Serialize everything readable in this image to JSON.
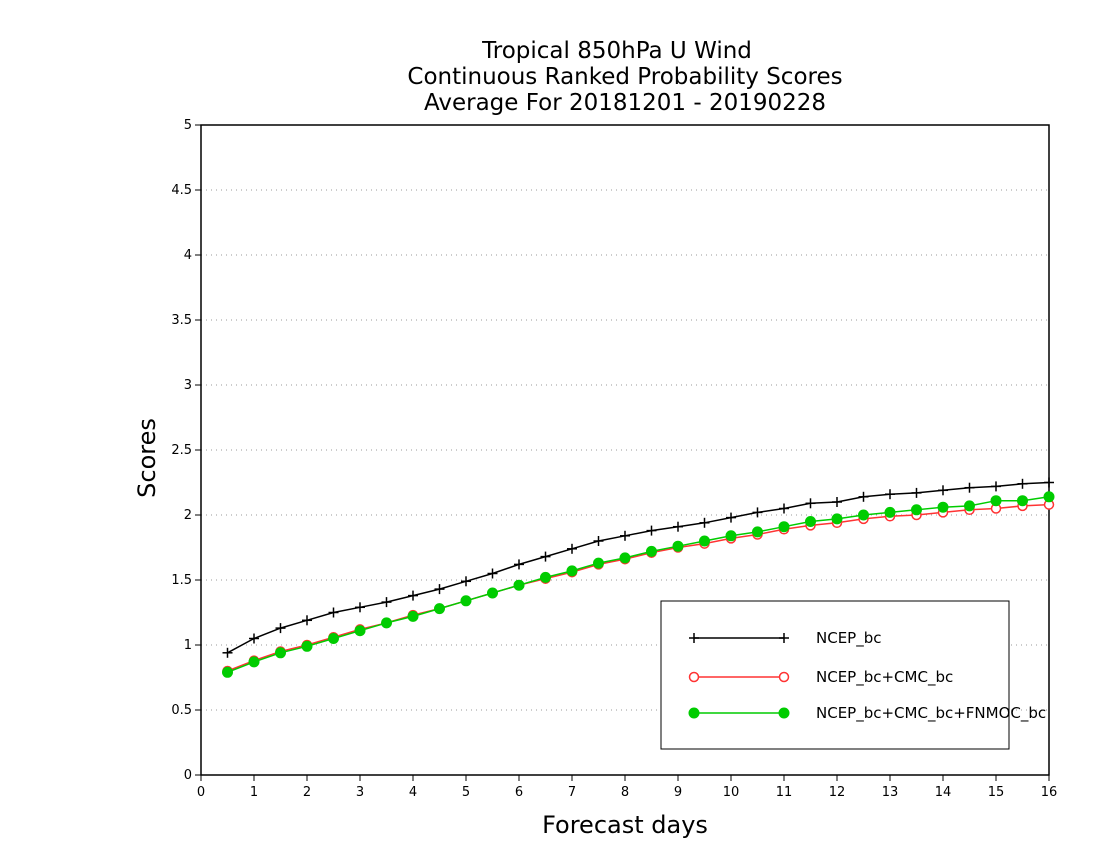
{
  "chart_data": {
    "type": "line",
    "title_lines": [
      "Tropical 850hPa U Wind",
      "Continuous Ranked Probability Scores",
      "Average For 20181201 - 20190228"
    ],
    "xlabel": "Forecast days",
    "ylabel": "Scores",
    "xlim": [
      0,
      16
    ],
    "ylim": [
      0,
      5
    ],
    "x_ticks": [
      "0",
      "1",
      "2",
      "3",
      "4",
      "5",
      "6",
      "7",
      "8",
      "9",
      "10",
      "11",
      "12",
      "13",
      "14",
      "15",
      "16"
    ],
    "y_ticks": [
      "0",
      "0.5",
      "1",
      "1.5",
      "2",
      "2.5",
      "3",
      "3.5",
      "4",
      "4.5",
      "5"
    ],
    "grid": "horizontal dotted",
    "legend_position": "lower-right",
    "x": [
      0.5,
      1,
      1.5,
      2,
      2.5,
      3,
      3.5,
      4,
      4.5,
      5,
      5.5,
      6,
      6.5,
      7,
      7.5,
      8,
      8.5,
      9,
      9.5,
      10,
      10.5,
      11,
      11.5,
      12,
      12.5,
      13,
      13.5,
      14,
      14.5,
      15,
      15.5,
      16
    ],
    "series": [
      {
        "name": "NCEP_bc",
        "color": "#000000",
        "marker": "plus",
        "values": [
          0.94,
          1.05,
          1.13,
          1.19,
          1.25,
          1.29,
          1.33,
          1.38,
          1.43,
          1.49,
          1.55,
          1.62,
          1.68,
          1.74,
          1.8,
          1.84,
          1.88,
          1.91,
          1.94,
          1.98,
          2.02,
          2.05,
          2.09,
          2.1,
          2.14,
          2.16,
          2.17,
          2.19,
          2.21,
          2.22,
          2.24,
          2.25
        ]
      },
      {
        "name": "NCEP_bc+CMC_bc",
        "color": "#ff3333",
        "marker": "open-circle",
        "values": [
          0.8,
          0.88,
          0.95,
          1.0,
          1.06,
          1.12,
          1.17,
          1.23,
          1.28,
          1.34,
          1.4,
          1.46,
          1.51,
          1.56,
          1.62,
          1.66,
          1.71,
          1.75,
          1.78,
          1.82,
          1.85,
          1.89,
          1.92,
          1.94,
          1.97,
          1.99,
          2.0,
          2.02,
          2.04,
          2.05,
          2.07,
          2.08
        ]
      },
      {
        "name": "NCEP_bc+CMC_bc+FNMOC_bc",
        "color": "#00cc00",
        "marker": "filled-circle",
        "values": [
          0.79,
          0.87,
          0.94,
          0.99,
          1.05,
          1.11,
          1.17,
          1.22,
          1.28,
          1.34,
          1.4,
          1.46,
          1.52,
          1.57,
          1.63,
          1.67,
          1.72,
          1.76,
          1.8,
          1.84,
          1.87,
          1.91,
          1.95,
          1.97,
          2.0,
          2.02,
          2.04,
          2.06,
          2.07,
          2.11,
          2.11,
          2.14
        ]
      }
    ]
  }
}
